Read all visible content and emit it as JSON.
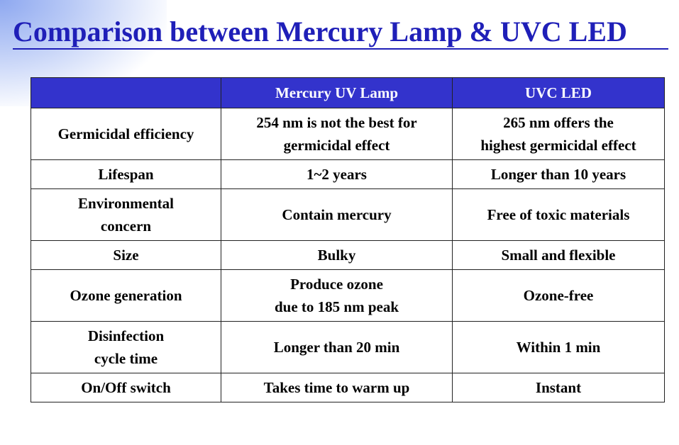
{
  "title": "Comparison between Mercury Lamp & UVC LED",
  "table": {
    "headers": [
      "",
      "Mercury UV Lamp",
      "UVC LED"
    ],
    "rows": [
      {
        "label": [
          "Germicidal efficiency"
        ],
        "mercury": [
          "254 nm is not the best for",
          "germicidal effect"
        ],
        "uvc": [
          "265 nm offers the",
          "highest germicidal effect"
        ]
      },
      {
        "label": [
          "Lifespan"
        ],
        "mercury": [
          "1~2 years"
        ],
        "uvc": [
          "Longer than 10 years"
        ]
      },
      {
        "label": [
          "Environmental",
          "concern"
        ],
        "mercury": [
          "Contain mercury"
        ],
        "uvc": [
          "Free of toxic materials"
        ]
      },
      {
        "label": [
          "Size"
        ],
        "mercury": [
          "Bulky"
        ],
        "uvc": [
          "Small and flexible"
        ]
      },
      {
        "label": [
          "Ozone generation"
        ],
        "mercury": [
          "Produce ozone",
          "due to 185 nm peak"
        ],
        "uvc": [
          "Ozone-free"
        ]
      },
      {
        "label": [
          "Disinfection",
          "cycle time"
        ],
        "mercury": [
          "Longer than 20 min"
        ],
        "uvc": [
          "Within 1 min"
        ]
      },
      {
        "label": [
          "On/Off switch"
        ],
        "mercury": [
          "Takes time to warm up"
        ],
        "uvc": [
          "Instant"
        ]
      }
    ]
  },
  "colors": {
    "title": "#1f1fb8",
    "header_bg": "#3333cc",
    "header_text": "#ffffff"
  }
}
